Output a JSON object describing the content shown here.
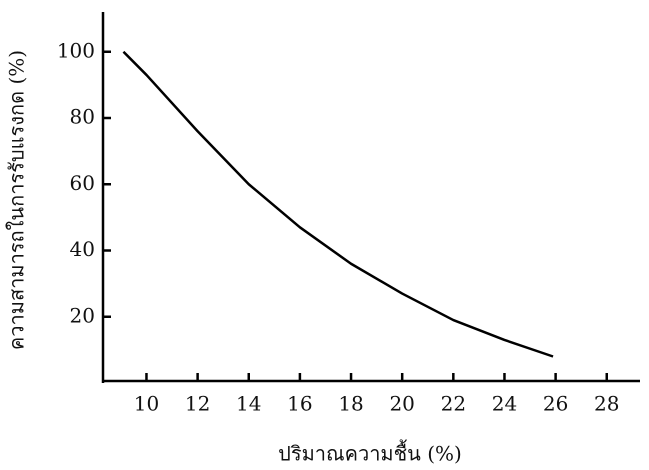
{
  "chart_data": {
    "type": "line",
    "x_label": "ปริมาณความชื้น (%)",
    "y_label": "ความสามารถในการรับแรงกด (%)",
    "x": [
      9.1,
      10,
      12,
      14,
      16,
      18,
      20,
      22,
      24,
      25.9
    ],
    "series": [
      {
        "name": null,
        "color": "#000000",
        "values": [
          100,
          93,
          76,
          60,
          47,
          36,
          27,
          19,
          13,
          8
        ]
      }
    ],
    "xlim": [
      8.3,
      29.3
    ],
    "ylim": [
      0,
      112
    ],
    "xticks": [
      10,
      12,
      14,
      16,
      18,
      20,
      22,
      24,
      26,
      28
    ],
    "yticks": [
      20,
      40,
      60,
      80,
      100
    ],
    "grid": false
  }
}
